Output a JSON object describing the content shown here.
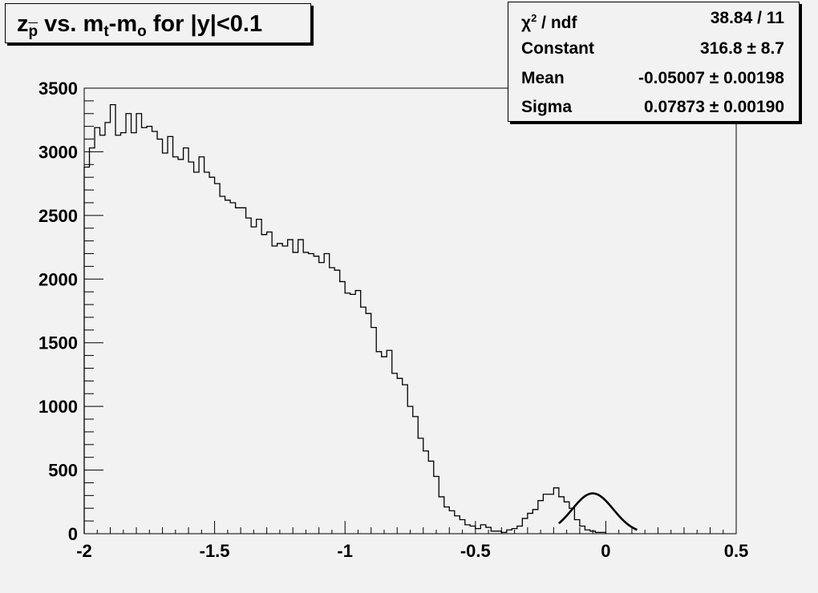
{
  "title": {
    "z": "z",
    "p": "p",
    "vs": " vs. m",
    "t": "t",
    "minus": "-m",
    "o": "o",
    "rest": " for |y|<0.1"
  },
  "stats": {
    "chi2_label": "χ",
    "chi2_sup": "2",
    "chi2_rest": " / ndf",
    "chi2_value": "38.84 / 11",
    "constant_label": "Constant",
    "constant_value": "316.8 ± 8.7",
    "mean_label": "Mean",
    "mean_value": "-0.05007 ± 0.00198",
    "sigma_label": "Sigma",
    "sigma_value": "0.07873 ± 0.00190"
  },
  "chart_data": {
    "type": "histogram",
    "xlim": [
      -2,
      0.5
    ],
    "ylim": [
      0,
      3500
    ],
    "x_ticks": [
      "-2",
      "-1.5",
      "-1",
      "-0.5",
      "0",
      "0.5"
    ],
    "x_tick_values": [
      -2,
      -1.5,
      -1,
      -0.5,
      0,
      0.5
    ],
    "y_ticks": [
      "0",
      "500",
      "1000",
      "1500",
      "2000",
      "2500",
      "3000",
      "3500"
    ],
    "y_tick_values": [
      0,
      500,
      1000,
      1500,
      2000,
      2500,
      3000,
      3500
    ],
    "bin_edges_start": -2,
    "bin_width": 0.02,
    "values": [
      2880,
      3030,
      3190,
      3130,
      3230,
      3370,
      3130,
      3150,
      3300,
      3150,
      3300,
      3190,
      3200,
      3160,
      3100,
      2990,
      3120,
      2960,
      2940,
      3030,
      2920,
      2840,
      2960,
      2840,
      2800,
      2750,
      2650,
      2620,
      2600,
      2560,
      2560,
      2480,
      2410,
      2470,
      2350,
      2370,
      2260,
      2280,
      2260,
      2310,
      2210,
      2310,
      2210,
      2200,
      2180,
      2130,
      2200,
      2090,
      2070,
      1980,
      1890,
      1880,
      1910,
      1780,
      1730,
      1620,
      1430,
      1390,
      1440,
      1260,
      1220,
      1170,
      1000,
      920,
      750,
      650,
      570,
      450,
      290,
      210,
      180,
      140,
      110,
      70,
      60,
      40,
      70,
      50,
      20,
      20,
      10,
      30,
      40,
      60,
      120,
      160,
      190,
      260,
      310,
      310,
      360,
      290,
      250,
      200,
      110,
      60,
      30,
      20,
      10,
      10
    ],
    "fit": {
      "function": "gaus",
      "constant": 316.8,
      "mean": -0.05007,
      "sigma": 0.07873,
      "range": [
        -0.18,
        0.12
      ]
    }
  }
}
